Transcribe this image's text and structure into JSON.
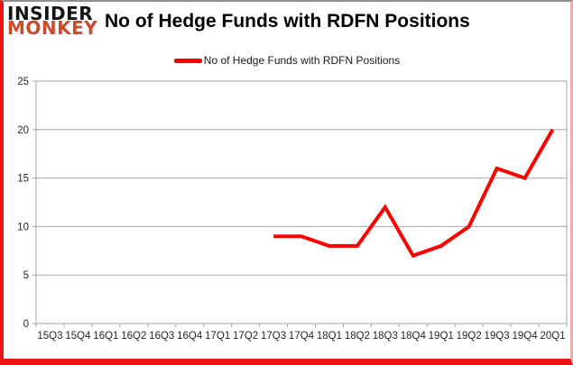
{
  "logo": {
    "line1": "INSIDER",
    "line2": "MONKEY",
    "line1_color": "#141414",
    "line2_color": "#cd4a2d"
  },
  "header": {
    "title": "No of Hedge Funds with RDFN Positions"
  },
  "legend": {
    "label": "No of Hedge Funds with RDFN Positions",
    "marker_color": "#ff0000"
  },
  "colors": {
    "line": "#ff0000",
    "gridline": "#a6a6a6",
    "axis": "#a6a6a6",
    "tick_text": "#262626",
    "border_red": "#ee1414",
    "background": "#ffffff"
  },
  "chart_data": {
    "type": "line",
    "title": "No of Hedge Funds with RDFN Positions",
    "categories": [
      "15Q3",
      "15Q4",
      "16Q1",
      "16Q2",
      "16Q3",
      "16Q4",
      "17Q1",
      "17Q2",
      "17Q3",
      "17Q4",
      "18Q1",
      "18Q2",
      "18Q3",
      "18Q4",
      "19Q1",
      "19Q2",
      "19Q3",
      "19Q4",
      "20Q1"
    ],
    "series": [
      {
        "name": "No of Hedge Funds with RDFN Positions",
        "color": "#ff0000",
        "values": [
          null,
          null,
          null,
          null,
          null,
          null,
          null,
          null,
          9,
          9,
          8,
          8,
          12,
          7,
          8,
          10,
          16,
          15,
          20
        ]
      }
    ],
    "ylim": [
      0,
      25
    ],
    "yticks": [
      0,
      5,
      10,
      15,
      20,
      25
    ],
    "xlabel": "",
    "ylabel": "",
    "grid": true,
    "legend_position": "top-center"
  }
}
